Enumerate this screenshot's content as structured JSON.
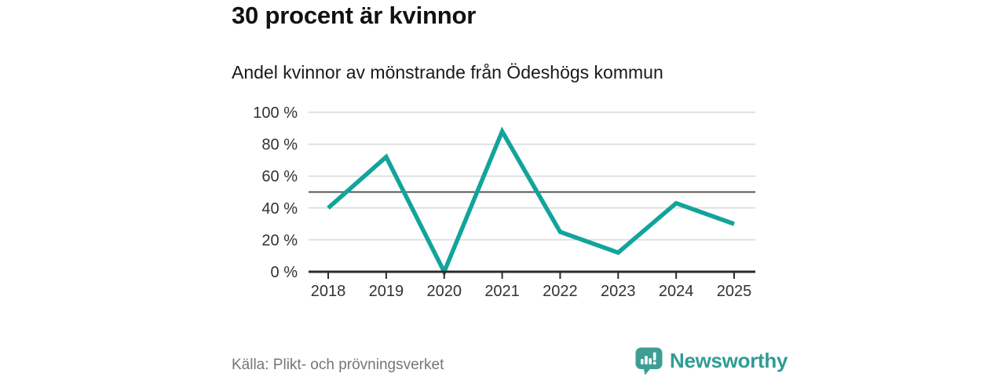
{
  "chart_data": {
    "type": "line",
    "title": "30 procent är kvinnor",
    "subtitle": "Andel kvinnor av mönstrande från Ödeshögs kommun",
    "categories": [
      "2018",
      "2019",
      "2020",
      "2021",
      "2022",
      "2023",
      "2024",
      "2025"
    ],
    "series": [
      {
        "name": "Andel kvinnor",
        "values": [
          40,
          72,
          0,
          88,
          25,
          12,
          43,
          30
        ]
      }
    ],
    "unit": "%",
    "ylim": [
      0,
      100
    ],
    "yticks": [
      0,
      20,
      40,
      60,
      80,
      100
    ],
    "ytick_suffix": " %",
    "xlabel": "",
    "ylabel": "",
    "reference_line": 50,
    "grid": true,
    "legend": "none",
    "colors": {
      "line": "#12A49B",
      "grid": "#D8D8D8",
      "reference": "#565656",
      "axis": "#2B2B2B",
      "tick_label": "#333333"
    }
  },
  "footer": {
    "source": "Källa: Plikt- och prövningsverket",
    "brand": "Newsworthy",
    "brand_color": "#2F9C94",
    "logo_icon": "bar-chart-speech-bubble"
  }
}
